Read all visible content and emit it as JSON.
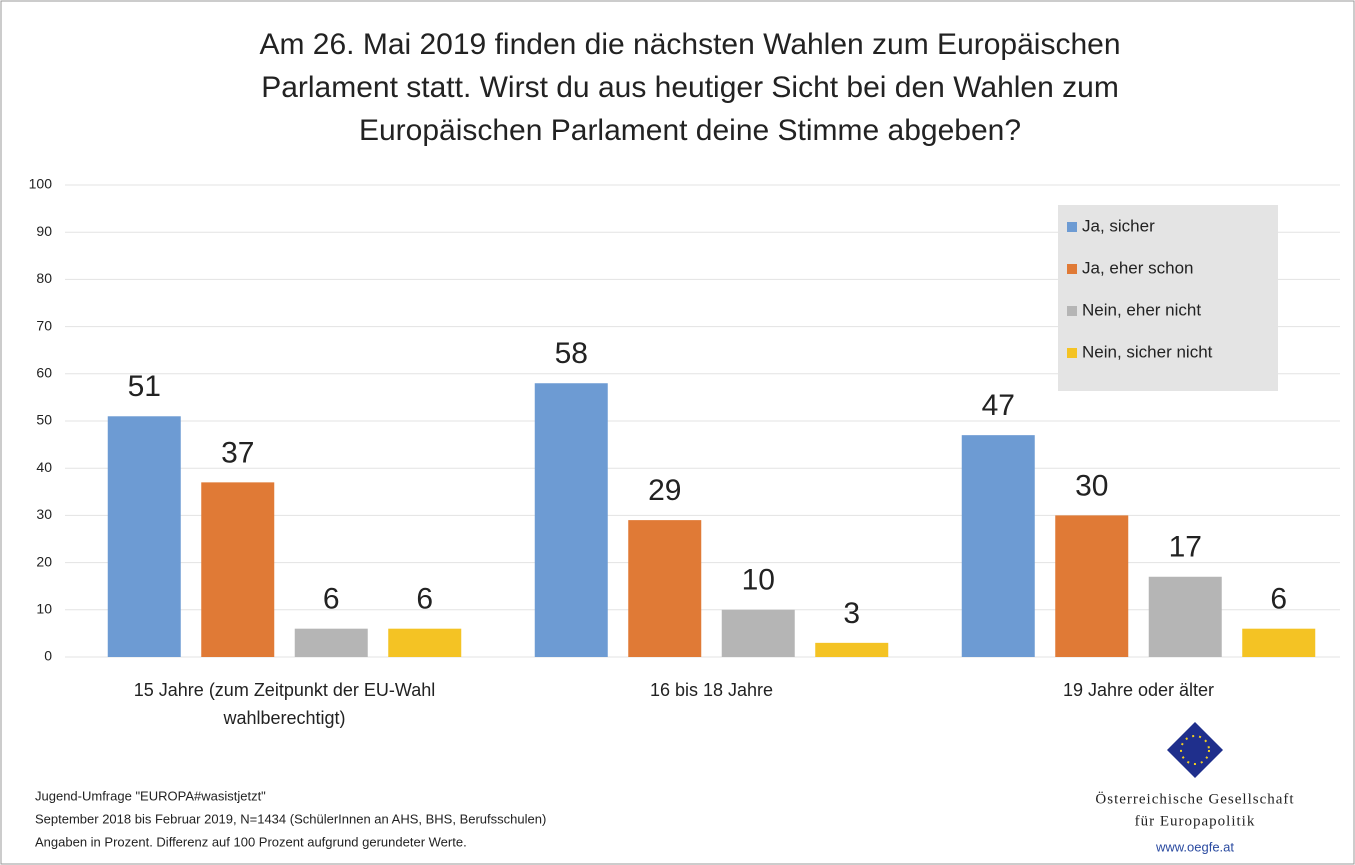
{
  "chart_data": {
    "type": "bar",
    "title": [
      "Am 26. Mai 2019 finden die nächsten Wahlen zum Europäischen",
      "Parlament statt. Wirst du aus heutiger Sicht bei den Wahlen zum",
      "Europäischen Parlament deine Stimme abgeben?"
    ],
    "categories": [
      "15 Jahre (zum Zeitpunkt der EU-Wahl wahlberechtigt)",
      "16 bis 18 Jahre",
      "19 Jahre oder älter"
    ],
    "series": [
      {
        "name": "Ja, sicher",
        "color": "#6d9bd3",
        "values": [
          51,
          58,
          47
        ]
      },
      {
        "name": "Ja, eher schon",
        "color": "#e07a36",
        "values": [
          37,
          29,
          30
        ]
      },
      {
        "name": "Nein, eher nicht",
        "color": "#b5b5b5",
        "values": [
          6,
          10,
          17
        ]
      },
      {
        "name": "Nein, sicher nicht",
        "color": "#f4c324",
        "values": [
          6,
          3,
          6
        ]
      }
    ],
    "ylim": [
      0,
      100
    ],
    "yticks": [
      0,
      10,
      20,
      30,
      40,
      50,
      60,
      70,
      80,
      90,
      100
    ],
    "grid": true,
    "legend": "upper right",
    "notes": [
      "Jugend-Umfrage \"EUROPA#wasistjetzt\"",
      "September 2018 bis Februar 2019, N=1434 (SchülerInnen an AHS, BHS, Berufsschulen)",
      "Angaben in Prozent. Differenz auf 100 Prozent aufgrund gerundeter Werte."
    ],
    "logo": {
      "lines": [
        "Österreichische Gesellschaft",
        "für Europapolitik"
      ],
      "url": "www.oegfe.at"
    }
  }
}
